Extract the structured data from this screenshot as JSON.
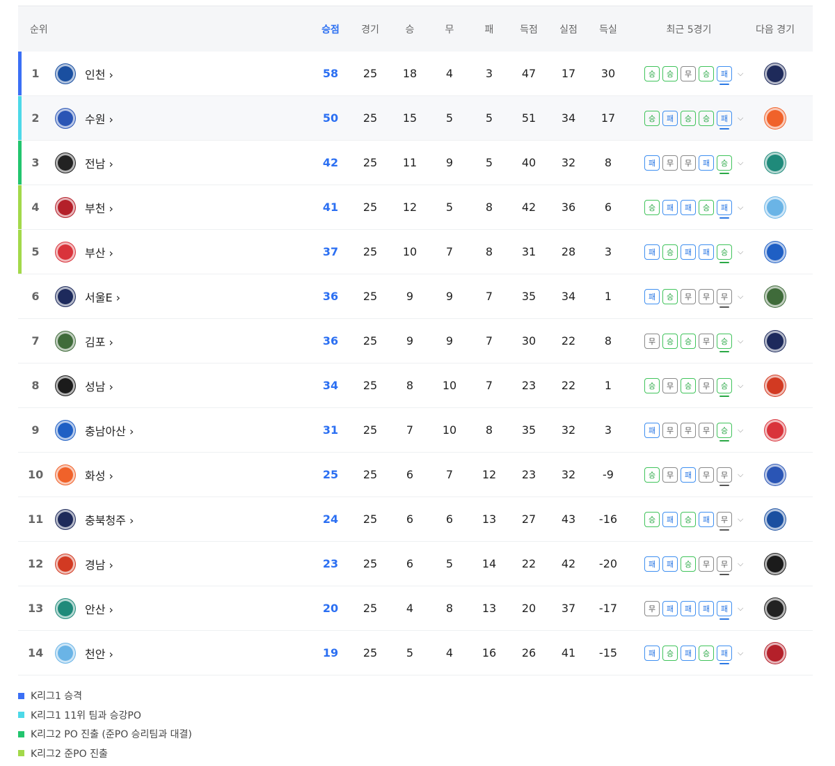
{
  "header": {
    "rank": "순위",
    "points": "승점",
    "played": "경기",
    "won": "승",
    "drawn": "무",
    "lost": "패",
    "gf": "득점",
    "ga": "실점",
    "gd": "득실",
    "recent": "최근 5경기",
    "next": "다음 경기"
  },
  "result_labels": {
    "W": "승",
    "D": "무",
    "L": "패"
  },
  "colors": {
    "W": "#2aa846",
    "D": "#555555",
    "L": "#2b78e4",
    "promotion": "#3b6ff5",
    "promo_playoff": "#4dd9e8",
    "po": "#22c56e",
    "pre_po": "#a3d94a",
    "points": "#2b6ff2"
  },
  "rows": [
    {
      "rank": "1",
      "team": "인천",
      "logo": "incheon-logo",
      "pts": "58",
      "gp": "25",
      "w": "18",
      "d": "4",
      "l": "3",
      "gf": "47",
      "ga": "17",
      "gd": "30",
      "recent": [
        "W",
        "W",
        "D",
        "W",
        "L"
      ],
      "next": "chungbuk-cheongju-logo",
      "zone": "promotion"
    },
    {
      "rank": "2",
      "team": "수원",
      "logo": "suwon-logo",
      "pts": "50",
      "gp": "25",
      "w": "15",
      "d": "5",
      "l": "5",
      "gf": "51",
      "ga": "34",
      "gd": "17",
      "recent": [
        "W",
        "L",
        "W",
        "W",
        "L"
      ],
      "next": "hwaseong-logo",
      "zone": "promo_playoff"
    },
    {
      "rank": "3",
      "team": "전남",
      "logo": "jeonnam-logo",
      "pts": "42",
      "gp": "25",
      "w": "11",
      "d": "9",
      "l": "5",
      "gf": "40",
      "ga": "32",
      "gd": "8",
      "recent": [
        "L",
        "D",
        "D",
        "L",
        "W"
      ],
      "next": "ansan-logo",
      "zone": "po"
    },
    {
      "rank": "4",
      "team": "부천",
      "logo": "bucheon-logo",
      "pts": "41",
      "gp": "25",
      "w": "12",
      "d": "5",
      "l": "8",
      "gf": "42",
      "ga": "36",
      "gd": "6",
      "recent": [
        "W",
        "L",
        "L",
        "W",
        "L"
      ],
      "next": "cheonan-logo",
      "zone": "pre_po"
    },
    {
      "rank": "5",
      "team": "부산",
      "logo": "busan-logo",
      "pts": "37",
      "gp": "25",
      "w": "10",
      "d": "7",
      "l": "8",
      "gf": "31",
      "ga": "28",
      "gd": "3",
      "recent": [
        "L",
        "W",
        "L",
        "L",
        "W"
      ],
      "next": "chungnam-asan-logo",
      "zone": "pre_po"
    },
    {
      "rank": "6",
      "team": "서울E",
      "logo": "seoul-e-logo",
      "pts": "36",
      "gp": "25",
      "w": "9",
      "d": "9",
      "l": "7",
      "gf": "35",
      "ga": "34",
      "gd": "1",
      "recent": [
        "L",
        "W",
        "D",
        "D",
        "D"
      ],
      "next": "gimpo-logo",
      "zone": ""
    },
    {
      "rank": "7",
      "team": "김포",
      "logo": "gimpo-logo",
      "pts": "36",
      "gp": "25",
      "w": "9",
      "d": "9",
      "l": "7",
      "gf": "30",
      "ga": "22",
      "gd": "8",
      "recent": [
        "D",
        "W",
        "W",
        "D",
        "W"
      ],
      "next": "seoul-e-logo",
      "zone": ""
    },
    {
      "rank": "8",
      "team": "성남",
      "logo": "seongnam-logo",
      "pts": "34",
      "gp": "25",
      "w": "8",
      "d": "10",
      "l": "7",
      "gf": "23",
      "ga": "22",
      "gd": "1",
      "recent": [
        "W",
        "D",
        "W",
        "D",
        "W"
      ],
      "next": "gyeongnam-logo",
      "zone": ""
    },
    {
      "rank": "9",
      "team": "충남아산",
      "logo": "chungnam-asan-logo",
      "pts": "31",
      "gp": "25",
      "w": "7",
      "d": "10",
      "l": "8",
      "gf": "35",
      "ga": "32",
      "gd": "3",
      "recent": [
        "L",
        "D",
        "D",
        "D",
        "W"
      ],
      "next": "busan-logo",
      "zone": ""
    },
    {
      "rank": "10",
      "team": "화성",
      "logo": "hwaseong-logo",
      "pts": "25",
      "gp": "25",
      "w": "6",
      "d": "7",
      "l": "12",
      "gf": "23",
      "ga": "32",
      "gd": "-9",
      "recent": [
        "W",
        "D",
        "L",
        "D",
        "D"
      ],
      "next": "suwon-logo",
      "zone": ""
    },
    {
      "rank": "11",
      "team": "충북청주",
      "logo": "chungbuk-cheongju-logo",
      "pts": "24",
      "gp": "25",
      "w": "6",
      "d": "6",
      "l": "13",
      "gf": "27",
      "ga": "43",
      "gd": "-16",
      "recent": [
        "W",
        "L",
        "W",
        "L",
        "D"
      ],
      "next": "incheon-logo",
      "zone": ""
    },
    {
      "rank": "12",
      "team": "경남",
      "logo": "gyeongnam-logo",
      "pts": "23",
      "gp": "25",
      "w": "6",
      "d": "5",
      "l": "14",
      "gf": "22",
      "ga": "42",
      "gd": "-20",
      "recent": [
        "L",
        "L",
        "W",
        "D",
        "D"
      ],
      "next": "seongnam-logo",
      "zone": ""
    },
    {
      "rank": "13",
      "team": "안산",
      "logo": "ansan-logo",
      "pts": "20",
      "gp": "25",
      "w": "4",
      "d": "8",
      "l": "13",
      "gf": "20",
      "ga": "37",
      "gd": "-17",
      "recent": [
        "D",
        "L",
        "L",
        "L",
        "L"
      ],
      "next": "jeonnam-logo",
      "zone": ""
    },
    {
      "rank": "14",
      "team": "천안",
      "logo": "cheonan-logo",
      "pts": "19",
      "gp": "25",
      "w": "5",
      "d": "4",
      "l": "16",
      "gf": "26",
      "ga": "41",
      "gd": "-15",
      "recent": [
        "L",
        "W",
        "L",
        "W",
        "L"
      ],
      "next": "bucheon-logo",
      "zone": ""
    }
  ],
  "logo_colors": {
    "incheon-logo": "#1a4fa0",
    "suwon-logo": "#2a55b5",
    "jeonnam-logo": "#222222",
    "bucheon-logo": "#b4202a",
    "busan-logo": "#d9333b",
    "seoul-e-logo": "#1d2a5c",
    "gimpo-logo": "#3f6b3a",
    "seongnam-logo": "#1b1b1b",
    "chungnam-asan-logo": "#1f5fc4",
    "hwaseong-logo": "#f0622a",
    "chungbuk-cheongju-logo": "#1e2a5a",
    "gyeongnam-logo": "#d23a22",
    "ansan-logo": "#1f8a7a",
    "cheonan-logo": "#6ab4e6"
  },
  "legend": [
    {
      "label": "K리그1 승격",
      "zone": "promotion"
    },
    {
      "label": "K리그1 11위 팀과 승강PO",
      "zone": "promo_playoff"
    },
    {
      "label": "K리그2 PO 진출 (준PO 승리팀과 대결)",
      "zone": "po"
    },
    {
      "label": "K리그2 준PO 진출",
      "zone": "pre_po"
    }
  ]
}
